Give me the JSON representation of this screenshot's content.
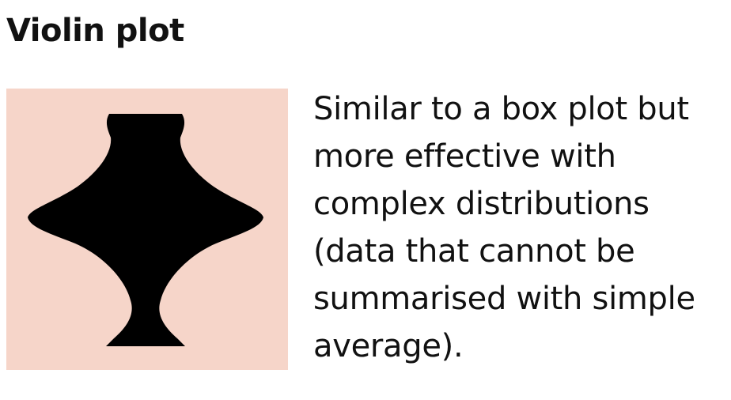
{
  "card": {
    "title": "Violin plot",
    "description_lines": [
      "Similar to a box plot but",
      "more effective with",
      "complex distributions",
      "(data that cannot be",
      "summarised with simple",
      "average)."
    ],
    "icon": "violin-plot-icon",
    "colors": {
      "panel_background": "#f6d5c9",
      "violin_fill": "#000000",
      "text": "#111111"
    }
  }
}
